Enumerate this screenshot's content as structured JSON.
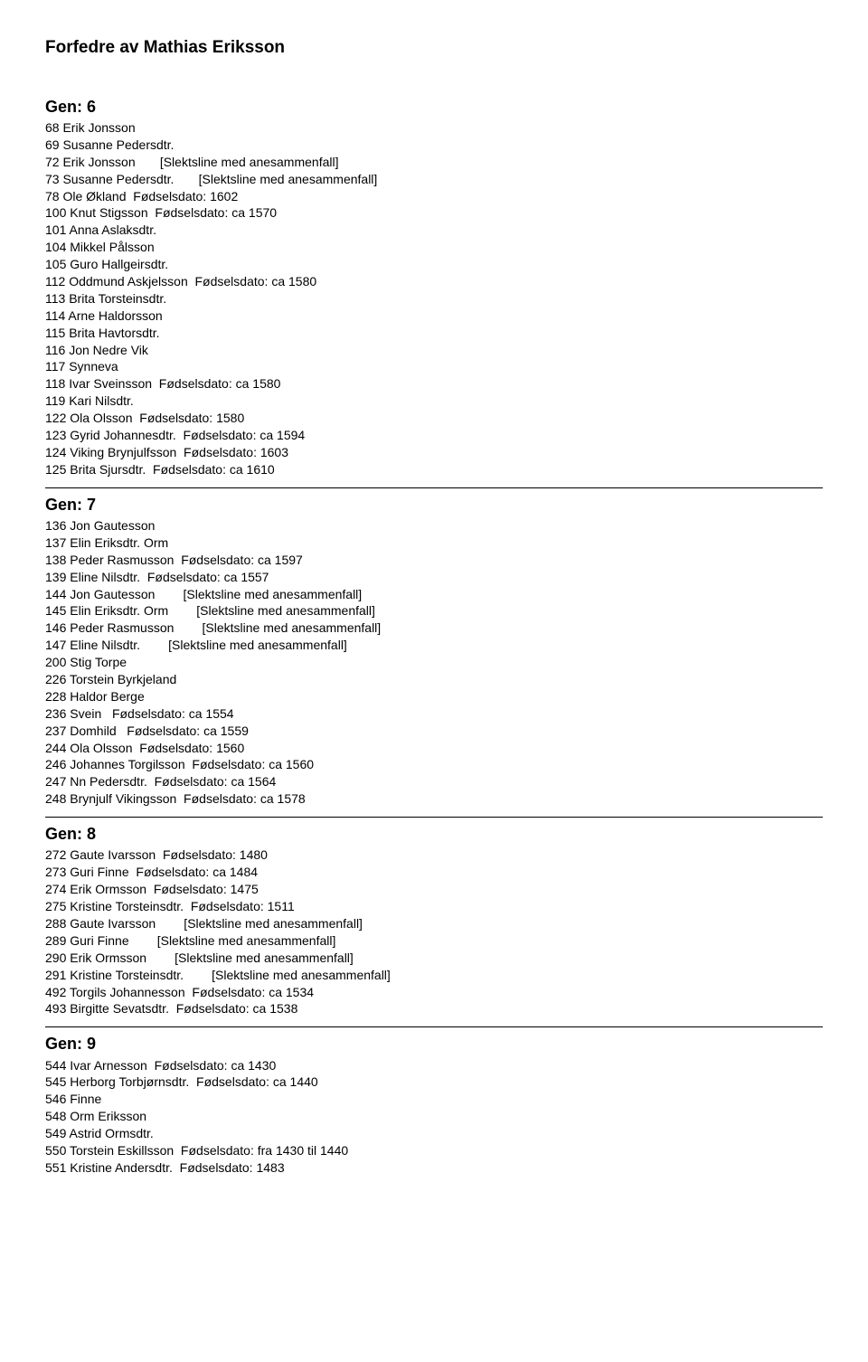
{
  "title": "Forfedre av Mathias Eriksson",
  "generations": [
    {
      "heading": "Gen:  6",
      "entries": [
        "68 Erik Jonsson",
        "69 Susanne Pedersdtr.",
        "72 Erik Jonsson       [Slektsline med anesammenfall]",
        "73 Susanne Pedersdtr.       [Slektsline med anesammenfall]",
        "78 Ole Økland  Fødselsdato: 1602",
        "100 Knut Stigsson  Fødselsdato: ca 1570",
        "101 Anna Aslaksdtr.",
        "104 Mikkel Pålsson",
        "105 Guro Hallgeirsdtr.",
        "112 Oddmund Askjelsson  Fødselsdato: ca 1580",
        "113 Brita Torsteinsdtr.",
        "114 Arne Haldorsson",
        "115 Brita Havtorsdtr.",
        "116 Jon Nedre Vik",
        "117 Synneva",
        "118 Ivar Sveinsson  Fødselsdato: ca 1580",
        "119 Kari Nilsdtr.",
        "122 Ola Olsson  Fødselsdato: 1580",
        "123 Gyrid Johannesdtr.  Fødselsdato: ca 1594",
        "124 Viking Brynjulfsson  Fødselsdato: 1603",
        "125 Brita Sjursdtr.  Fødselsdato: ca 1610"
      ]
    },
    {
      "heading": "Gen:  7",
      "entries": [
        "136 Jon Gautesson",
        "137 Elin Eriksdtr. Orm",
        "138 Peder Rasmusson  Fødselsdato: ca 1597",
        "139 Eline Nilsdtr.  Fødselsdato: ca 1557",
        "144 Jon Gautesson        [Slektsline med anesammenfall]",
        "145 Elin Eriksdtr. Orm        [Slektsline med anesammenfall]",
        "146 Peder Rasmusson        [Slektsline med anesammenfall]",
        "147 Eline Nilsdtr.        [Slektsline med anesammenfall]",
        "200 Stig Torpe",
        "226 Torstein Byrkjeland",
        "228 Haldor Berge",
        "236 Svein   Fødselsdato: ca 1554",
        "237 Domhild   Fødselsdato: ca 1559",
        "244 Ola Olsson  Fødselsdato: 1560",
        "246 Johannes Torgilsson  Fødselsdato: ca 1560",
        "247 Nn Pedersdtr.  Fødselsdato: ca 1564",
        "248 Brynjulf Vikingsson  Fødselsdato: ca 1578"
      ]
    },
    {
      "heading": "Gen:  8",
      "entries": [
        "272 Gaute Ivarsson  Fødselsdato: 1480",
        "273 Guri Finne  Fødselsdato: ca 1484",
        "274 Erik Ormsson  Fødselsdato: 1475",
        "275 Kristine Torsteinsdtr.  Fødselsdato: 1511",
        "288 Gaute Ivarsson        [Slektsline med anesammenfall]",
        "289 Guri Finne        [Slektsline med anesammenfall]",
        "290 Erik Ormsson        [Slektsline med anesammenfall]",
        "291 Kristine Torsteinsdtr.        [Slektsline med anesammenfall]",
        "492 Torgils Johannesson  Fødselsdato: ca 1534",
        "493 Birgitte Sevatsdtr.  Fødselsdato: ca 1538"
      ]
    },
    {
      "heading": "Gen:  9",
      "entries": [
        "544 Ivar Arnesson  Fødselsdato: ca 1430",
        "545 Herborg Torbjørnsdtr.  Fødselsdato: ca 1440",
        "546 Finne",
        "548 Orm Eriksson",
        "549 Astrid Ormsdtr.",
        "550 Torstein Eskillsson  Fødselsdato: fra 1430 til 1440",
        "551 Kristine Andersdtr.  Fødselsdato: 1483"
      ]
    }
  ]
}
